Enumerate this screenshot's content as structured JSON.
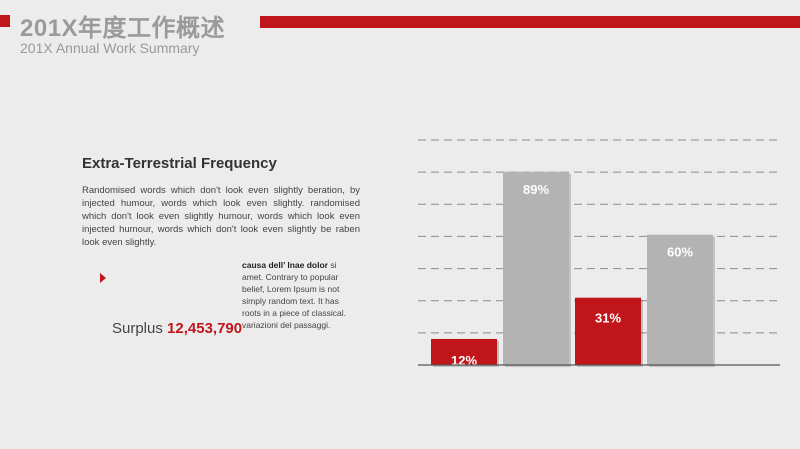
{
  "header": {
    "title": "201X年度工作概述",
    "subtitle": "201X Annual Work Summary"
  },
  "section": {
    "heading": "Extra-Terrestrial Frequency",
    "body": "Randomised words which don't look even slightly beration, by injected humour, words which look even slightly. randomised which don't look even slightly humour, words which look even injected humour, words which don't look even slightly be raben look even slightly.",
    "column_bold": "causa dell’ lnae dolor",
    "column_text": " si amet. Contrary to popular belief, Lorem Ipsum is not simply random text. It has roots in a piece of classical. variazioni del passaggi.",
    "surplus_label": "Surplus",
    "surplus_value": "12,453,790"
  },
  "colors": {
    "accent": "#c0161b",
    "bar_gray": "#b3b3b3",
    "text_gray": "#9a9a9a"
  },
  "chart_data": {
    "type": "bar",
    "categories": [
      "",
      "",
      "",
      ""
    ],
    "values": [
      12,
      89,
      31,
      60
    ],
    "labels": [
      "12%",
      "89%",
      "31%",
      "60%"
    ],
    "bar_colors": [
      "#c0161b",
      "#b3b3b3",
      "#c0161b",
      "#b3b3b3"
    ],
    "ylim": [
      0,
      100
    ],
    "grid": true,
    "grid_style": "dashed",
    "legend": "none",
    "title": "",
    "xlabel": "",
    "ylabel": ""
  }
}
